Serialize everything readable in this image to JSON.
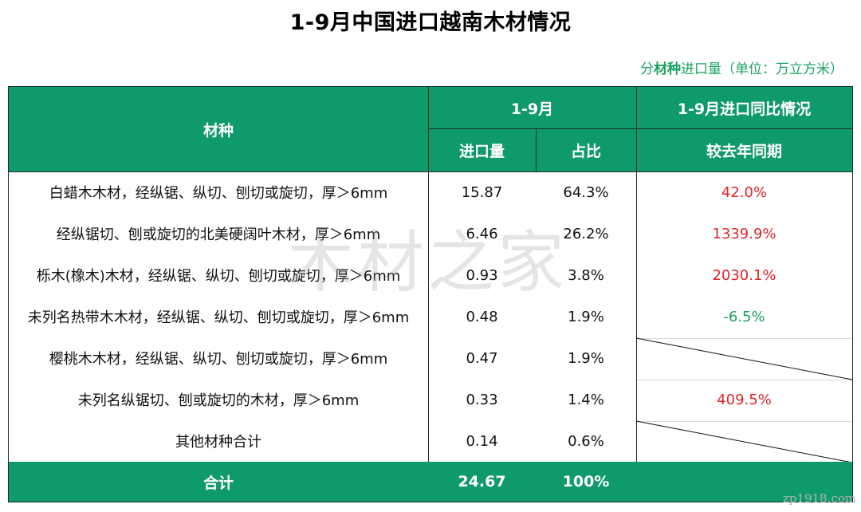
{
  "title": "1-9月中国进口越南木材情况",
  "unit": {
    "prefix": "分",
    "bold": "材种",
    "suffix": "进口量（单位：万立方米）"
  },
  "header": {
    "material": "材种",
    "period": "1-9月",
    "yoy_group": "1-9月进口同比情况",
    "import_volume": "进口量",
    "share": "占比",
    "vs_last_year": "较去年同期"
  },
  "rows": [
    {
      "material": "白蜡木木材，经纵锯、纵切、刨切或旋切，厚＞6mm",
      "volume": "15.87",
      "share": "64.3%",
      "yoy": "42.0%"
    },
    {
      "material": "经纵锯切、刨或旋切的北美硬阔叶木材，厚＞6mm",
      "volume": "6.46",
      "share": "26.2%",
      "yoy": "1339.9%"
    },
    {
      "material": "栎木(橡木)木材，经纵锯、纵切、刨切或旋切，厚＞6mm",
      "volume": "0.93",
      "share": "3.8%",
      "yoy": "2030.1%"
    },
    {
      "material": "未列名热带木木材，经纵锯、纵切、刨切或旋切，厚＞6mm",
      "volume": "0.48",
      "share": "1.9%",
      "yoy": "-6.5%"
    },
    {
      "material": "樱桃木木材，经纵锯、纵切、刨切或旋切，厚＞6mm",
      "volume": "0.47",
      "share": "1.9%",
      "yoy": ""
    },
    {
      "material": "未列名纵锯切、刨或旋切的木材，厚＞6mm",
      "volume": "0.33",
      "share": "1.4%",
      "yoy": "409.5%"
    },
    {
      "material": "其他材种合计",
      "volume": "0.14",
      "share": "0.6%",
      "yoy": ""
    }
  ],
  "total": {
    "label": "合计",
    "volume": "24.67",
    "share": "100%"
  },
  "watermark": "木材之家",
  "site": "zp1918.com",
  "colors": {
    "header_bg": "#0f9a6c",
    "positive": "#e0252a",
    "negative": "#1aa35f"
  }
}
